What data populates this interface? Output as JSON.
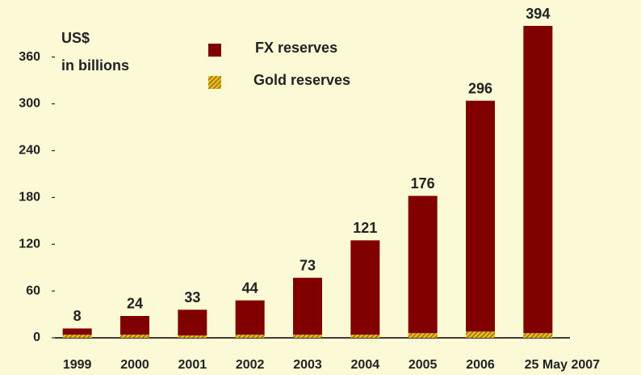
{
  "chart_data": {
    "type": "stacked_bar",
    "y_label": [
      "US$",
      "in billions"
    ],
    "categories": [
      "1999",
      "2000",
      "2001",
      "2002",
      "2003",
      "2004",
      "2005",
      "2006",
      "25 May 2007"
    ],
    "series": [
      {
        "name": "Gold reserves",
        "color": "#d4a017",
        "pattern": "hatch",
        "values": [
          4,
          4,
          3,
          4,
          4,
          4,
          6,
          8,
          6
        ]
      },
      {
        "name": "FX reserves",
        "color": "#800000",
        "values": [
          8,
          24,
          33,
          44,
          73,
          121,
          176,
          296,
          394
        ]
      }
    ],
    "ylim": [
      0,
      400
    ],
    "yticks": [
      0,
      60,
      120,
      180,
      240,
      300,
      360
    ]
  }
}
